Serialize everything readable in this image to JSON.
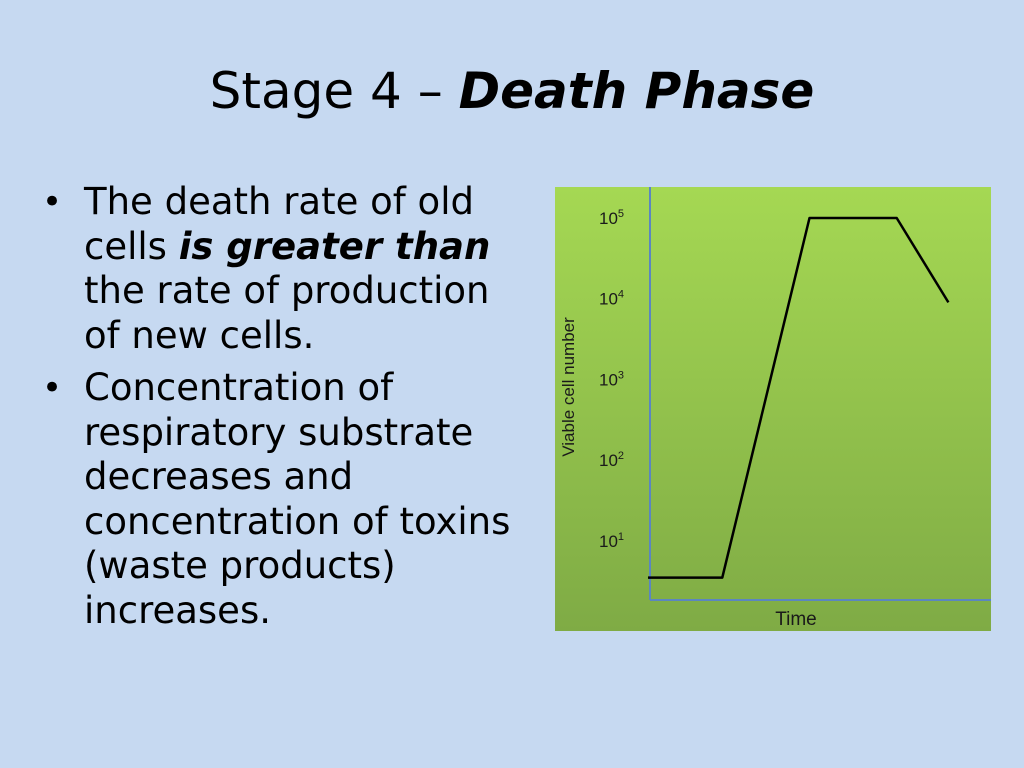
{
  "slide": {
    "title_prefix": "Stage 4 – ",
    "title_emphasis": "Death Phase"
  },
  "bullets": [
    {
      "before": "The death rate of old cells ",
      "emphasis": "is greater than",
      "after": " the rate of production of new cells."
    },
    {
      "text": "Concentration of respiratory substrate decreases and concentration of toxins (waste products) increases."
    }
  ],
  "chart_data": {
    "type": "line",
    "title": "",
    "xlabel": "Time",
    "ylabel": "Viable cell number",
    "ylog": true,
    "yticks": [
      {
        "base": "10",
        "exp": "1",
        "value": 10
      },
      {
        "base": "10",
        "exp": "2",
        "value": 100
      },
      {
        "base": "10",
        "exp": "3",
        "value": 1000
      },
      {
        "base": "10",
        "exp": "4",
        "value": 10000
      },
      {
        "base": "10",
        "exp": "5",
        "value": 100000
      }
    ],
    "ylim": [
      3,
      100000
    ],
    "series": [
      {
        "points": [
          {
            "x": 0.0,
            "y": 3.5
          },
          {
            "x": 0.23,
            "y": 3.5
          },
          {
            "x": 0.5,
            "y": 100000
          },
          {
            "x": 0.77,
            "y": 100000
          },
          {
            "x": 0.93,
            "y": 9000
          }
        ]
      }
    ],
    "colors": {
      "background_top": "#a5d853",
      "background_bottom": "#7fab45",
      "axis": "#5b86c0",
      "line": "#000000"
    }
  }
}
